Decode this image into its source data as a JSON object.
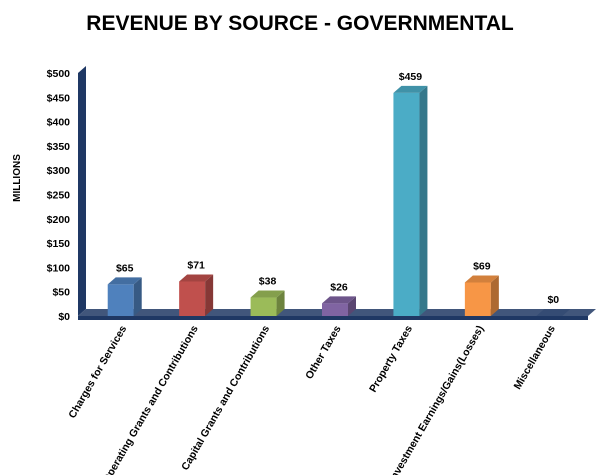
{
  "chart_data": {
    "type": "bar",
    "title": "REVENUE BY SOURCE - GOVERNMENTAL",
    "ylabel": "MILLIONS",
    "xlabel": "",
    "ylim": [
      0,
      500
    ],
    "yticks": [
      "$0",
      "$50",
      "$100",
      "$150",
      "$200",
      "$250",
      "$300",
      "$350",
      "$400",
      "$450",
      "$500"
    ],
    "ytick_values": [
      0,
      50,
      100,
      150,
      200,
      250,
      300,
      350,
      400,
      450,
      500
    ],
    "grid": false,
    "categories": [
      "Charges for Services",
      "Operating Grants and Contributions",
      "Capital Grants and Contributions",
      "Other Taxes",
      "Property Taxes",
      "Investment Earnings/Gains(Losses)",
      "Miscellaneous"
    ],
    "values": [
      65,
      71,
      38,
      26,
      459,
      69,
      0
    ],
    "data_labels": [
      "$65",
      "$71",
      "$38",
      "$26",
      "$459",
      "$69",
      "$0"
    ],
    "colors": [
      "#4F81BD",
      "#C0504D",
      "#9BBB59",
      "#8064A2",
      "#4BACC6",
      "#F79646",
      "#1F3864"
    ],
    "axis_color": "#1F3864"
  }
}
